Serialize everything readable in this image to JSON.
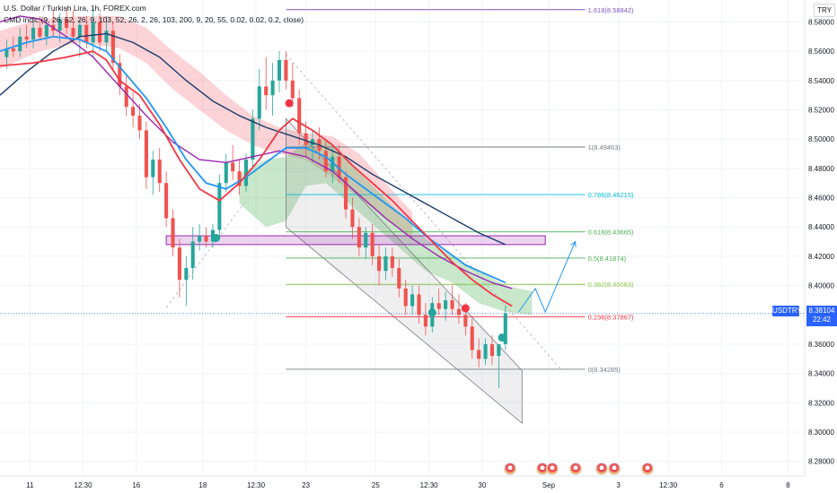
{
  "legend": {
    "symbol": "U.S. Dollar / Turkish Lira, 1h, FOREX.com",
    "indicator": "CMD indic (9, 26, 52, 26, 9, 103, 52, 26, 2, 26, 103, 200, 9, 20, 55, 0.02, 0.02, 0.2, close)"
  },
  "currency_button": "TRY",
  "current_price": {
    "symbol": "USDTRY",
    "value": "8.38104",
    "countdown": "22:42"
  },
  "chart_data": {
    "type": "candlestick",
    "title": "U.S. Dollar / Turkish Lira, 1h, FOREX.com",
    "ylim": [
      8.27,
      8.595
    ],
    "yticks": [
      8.28,
      8.3,
      8.32,
      8.34,
      8.36,
      8.38,
      8.4,
      8.42,
      8.44,
      8.46,
      8.48,
      8.5,
      8.52,
      8.54,
      8.56,
      8.58
    ],
    "ytick_labels": [
      "8.28000",
      "8.30000",
      "8.32000",
      "8.34000",
      "8.36000",
      "8.38000",
      "8.40000",
      "8.42000",
      "8.44000",
      "8.46000",
      "8.48000",
      "8.50000",
      "8.52000",
      "8.54000",
      "8.56000",
      "8.58000"
    ],
    "xlim": [
      0,
      121
    ],
    "xticks": [
      {
        "t": 4.5,
        "label": "11"
      },
      {
        "t": 12.5,
        "label": "12:30"
      },
      {
        "t": 20.5,
        "label": "16"
      },
      {
        "t": 30.5,
        "label": "18"
      },
      {
        "t": 38.5,
        "label": "12:30"
      },
      {
        "t": 46,
        "label": "23"
      },
      {
        "t": 56.5,
        "label": "25"
      },
      {
        "t": 64.5,
        "label": "12:30"
      },
      {
        "t": 72.5,
        "label": "30"
      },
      {
        "t": 82.5,
        "label": "Sep"
      },
      {
        "t": 93,
        "label": "3"
      },
      {
        "t": 100.5,
        "label": "12:30"
      },
      {
        "t": 108.5,
        "label": "6"
      },
      {
        "t": 118.5,
        "label": "8"
      }
    ],
    "current_price": 8.38104,
    "fibonacci": {
      "x_range": [
        43,
        88
      ],
      "levels": [
        {
          "ratio": "1.618",
          "value": 8.58842,
          "label": "1.618(8.58842)",
          "color": "#7e57c2"
        },
        {
          "ratio": "1",
          "value": 8.49463,
          "label": "1(8.49463)",
          "color": "#787b86"
        },
        {
          "ratio": "0.786",
          "value": 8.46215,
          "label": "0.786(8.46215)",
          "color": "#00bcd4"
        },
        {
          "ratio": "0.618",
          "value": 8.43665,
          "label": "0.618(8.43665)",
          "color": "#4caf50"
        },
        {
          "ratio": "0.5",
          "value": 8.41874,
          "label": "0.5(8.41874)",
          "color": "#4caf50"
        },
        {
          "ratio": "0.382",
          "value": 8.40083,
          "label": "0.382(8.40083)",
          "color": "#8bc34a"
        },
        {
          "ratio": "0.236",
          "value": 8.37867,
          "label": "0.236(8.37867)",
          "color": "#f23645"
        },
        {
          "ratio": "0",
          "value": 8.34285,
          "label": "0(8.34285)",
          "color": "#787b86"
        }
      ]
    },
    "zone": {
      "t0": 25,
      "t1": 82,
      "top": 8.434,
      "bottom": 8.428,
      "color": "#9c27b0"
    },
    "channel": [
      [
        43,
        8.514
      ],
      [
        78.5,
        8.342
      ],
      [
        78.5,
        8.306
      ],
      [
        43,
        8.44
      ]
    ],
    "projection_arrow": [
      [
        78,
        8.382
      ],
      [
        80.5,
        8.398
      ],
      [
        82,
        8.382
      ],
      [
        86.5,
        8.43
      ]
    ],
    "markers": [
      {
        "t": 32.5,
        "v": 8.4325,
        "color": "#26a69a"
      },
      {
        "t": 43.5,
        "v": 8.5245,
        "color": "#f23645"
      },
      {
        "t": 65,
        "v": 8.3815,
        "color": "#26a69a"
      },
      {
        "t": 70,
        "v": 8.3845,
        "color": "#f23645"
      },
      {
        "t": 75.5,
        "v": 8.3645,
        "color": "#26a69a"
      }
    ],
    "series": {
      "candles": [
        [
          1,
          8.556,
          8.568,
          8.548,
          8.562
        ],
        [
          2,
          8.562,
          8.57,
          8.556,
          8.56
        ],
        [
          3,
          8.56,
          8.576,
          8.556,
          8.57
        ],
        [
          4,
          8.57,
          8.578,
          8.562,
          8.568
        ],
        [
          5,
          8.568,
          8.58,
          8.562,
          8.576
        ],
        [
          6,
          8.576,
          8.584,
          8.568,
          8.57
        ],
        [
          7,
          8.57,
          8.582,
          8.564,
          8.578
        ],
        [
          8,
          8.578,
          8.588,
          8.57,
          8.574
        ],
        [
          9,
          8.574,
          8.586,
          8.566,
          8.582
        ],
        [
          10,
          8.582,
          8.59,
          8.572,
          8.576
        ],
        [
          11,
          8.576,
          8.588,
          8.566,
          8.57
        ],
        [
          12,
          8.57,
          8.582,
          8.556,
          8.578
        ],
        [
          13,
          8.578,
          8.584,
          8.562,
          8.566
        ],
        [
          14,
          8.566,
          8.59,
          8.556,
          8.58
        ],
        [
          15,
          8.58,
          8.586,
          8.56,
          8.566
        ],
        [
          16,
          8.566,
          8.584,
          8.56,
          8.574
        ],
        [
          17,
          8.574,
          8.58,
          8.548,
          8.552
        ],
        [
          18,
          8.552,
          8.558,
          8.53,
          8.536
        ],
        [
          19,
          8.536,
          8.544,
          8.516,
          8.522
        ],
        [
          20,
          8.522,
          8.532,
          8.508,
          8.516
        ],
        [
          21,
          8.516,
          8.524,
          8.5,
          8.506
        ],
        [
          22,
          8.506,
          8.512,
          8.466,
          8.474
        ],
        [
          23,
          8.474,
          8.492,
          8.462,
          8.486
        ],
        [
          24,
          8.486,
          8.494,
          8.464,
          8.47
        ],
        [
          25,
          8.47,
          8.478,
          8.44,
          8.446
        ],
        [
          26,
          8.446,
          8.452,
          8.42,
          8.426
        ],
        [
          27,
          8.426,
          8.432,
          8.392,
          8.404
        ],
        [
          28,
          8.404,
          8.42,
          8.386,
          8.412
        ],
        [
          29,
          8.412,
          8.44,
          8.404,
          8.43
        ],
        [
          30,
          8.43,
          8.442,
          8.424,
          8.434
        ],
        [
          31,
          8.434,
          8.44,
          8.426,
          8.43
        ],
        [
          32,
          8.43,
          8.442,
          8.426,
          8.438
        ],
        [
          33,
          8.438,
          8.476,
          8.434,
          8.47
        ],
        [
          34,
          8.47,
          8.49,
          8.464,
          8.484
        ],
        [
          35,
          8.484,
          8.496,
          8.472,
          8.478
        ],
        [
          36,
          8.478,
          8.486,
          8.462,
          8.468
        ],
        [
          37,
          8.468,
          8.49,
          8.464,
          8.486
        ],
        [
          38,
          8.486,
          8.52,
          8.48,
          8.514
        ],
        [
          39,
          8.514,
          8.548,
          8.506,
          8.536
        ],
        [
          40,
          8.536,
          8.556,
          8.52,
          8.53
        ],
        [
          41,
          8.53,
          8.552,
          8.516,
          8.54
        ],
        [
          42,
          8.54,
          8.56,
          8.532,
          8.554
        ],
        [
          43,
          8.554,
          8.56,
          8.534,
          8.54
        ],
        [
          44,
          8.54,
          8.552,
          8.522,
          8.528
        ],
        [
          45,
          8.528,
          8.534,
          8.496,
          8.504
        ],
        [
          46,
          8.504,
          8.512,
          8.488,
          8.496
        ],
        [
          47,
          8.496,
          8.506,
          8.484,
          8.5
        ],
        [
          48,
          8.5,
          8.508,
          8.486,
          8.492
        ],
        [
          49,
          8.492,
          8.5,
          8.474,
          8.478
        ],
        [
          50,
          8.478,
          8.494,
          8.47,
          8.488
        ],
        [
          51,
          8.488,
          8.496,
          8.47,
          8.474
        ],
        [
          52,
          8.474,
          8.478,
          8.446,
          8.452
        ],
        [
          53,
          8.452,
          8.46,
          8.432,
          8.44
        ],
        [
          54,
          8.44,
          8.446,
          8.42,
          8.426
        ],
        [
          55,
          8.426,
          8.44,
          8.418,
          8.436
        ],
        [
          56,
          8.436,
          8.442,
          8.414,
          8.42
        ],
        [
          57,
          8.42,
          8.428,
          8.4,
          8.41
        ],
        [
          58,
          8.41,
          8.426,
          8.404,
          8.42
        ],
        [
          59,
          8.42,
          8.426,
          8.406,
          8.412
        ],
        [
          60,
          8.412,
          8.418,
          8.392,
          8.398
        ],
        [
          61,
          8.398,
          8.404,
          8.38,
          8.386
        ],
        [
          62,
          8.386,
          8.4,
          8.38,
          8.394
        ],
        [
          63,
          8.394,
          8.4,
          8.374,
          8.38
        ],
        [
          64,
          8.38,
          8.388,
          8.366,
          8.372
        ],
        [
          65,
          8.372,
          8.392,
          8.368,
          8.388
        ],
        [
          66,
          8.388,
          8.398,
          8.38,
          8.384
        ],
        [
          67,
          8.384,
          8.396,
          8.376,
          8.39
        ],
        [
          68,
          8.39,
          8.4,
          8.38,
          8.384
        ],
        [
          69,
          8.384,
          8.394,
          8.374,
          8.38
        ],
        [
          70,
          8.38,
          8.388,
          8.366,
          8.372
        ],
        [
          71,
          8.372,
          8.378,
          8.35,
          8.356
        ],
        [
          72,
          8.356,
          8.364,
          8.344,
          8.35
        ],
        [
          73,
          8.35,
          8.364,
          8.346,
          8.36
        ],
        [
          74,
          8.36,
          8.366,
          8.346,
          8.352
        ],
        [
          75,
          8.352,
          8.358,
          8.33,
          8.36
        ],
        [
          76,
          8.36,
          8.386,
          8.356,
          8.381
        ]
      ],
      "red_line": [
        [
          0,
          8.55
        ],
        [
          5,
          8.552
        ],
        [
          10,
          8.556
        ],
        [
          14,
          8.56
        ],
        [
          16,
          8.554
        ],
        [
          18,
          8.54
        ],
        [
          21,
          8.53
        ],
        [
          24,
          8.51
        ],
        [
          27,
          8.486
        ],
        [
          30,
          8.466
        ],
        [
          33,
          8.458
        ],
        [
          36,
          8.47
        ],
        [
          39,
          8.486
        ],
        [
          42,
          8.506
        ],
        [
          44,
          8.514
        ],
        [
          47,
          8.506
        ],
        [
          50,
          8.496
        ],
        [
          53,
          8.482
        ],
        [
          56,
          8.47
        ],
        [
          59,
          8.458
        ],
        [
          62,
          8.444
        ],
        [
          65,
          8.43
        ],
        [
          68,
          8.416
        ],
        [
          71,
          8.404
        ],
        [
          74,
          8.394
        ],
        [
          77,
          8.386
        ]
      ],
      "blue_line": [
        [
          0,
          8.56
        ],
        [
          4,
          8.566
        ],
        [
          8,
          8.57
        ],
        [
          12,
          8.568
        ],
        [
          16,
          8.56
        ],
        [
          19,
          8.544
        ],
        [
          22,
          8.528
        ],
        [
          25,
          8.508
        ],
        [
          28,
          8.486
        ],
        [
          31,
          8.47
        ],
        [
          34,
          8.466
        ],
        [
          37,
          8.474
        ],
        [
          40,
          8.484
        ],
        [
          43,
          8.494
        ],
        [
          46,
          8.494
        ],
        [
          49,
          8.488
        ],
        [
          52,
          8.476
        ],
        [
          55,
          8.466
        ],
        [
          58,
          8.456
        ],
        [
          61,
          8.446
        ],
        [
          64,
          8.434
        ],
        [
          67,
          8.424
        ],
        [
          70,
          8.414
        ],
        [
          73,
          8.408
        ],
        [
          76,
          8.402
        ]
      ],
      "purple_line": [
        [
          0,
          8.58
        ],
        [
          3,
          8.584
        ],
        [
          6,
          8.582
        ],
        [
          10,
          8.57
        ],
        [
          14,
          8.556
        ],
        [
          18,
          8.536
        ],
        [
          22,
          8.516
        ],
        [
          26,
          8.498
        ],
        [
          30,
          8.486
        ],
        [
          34,
          8.484
        ],
        [
          38,
          8.488
        ],
        [
          42,
          8.492
        ],
        [
          46,
          8.488
        ],
        [
          50,
          8.478
        ],
        [
          54,
          8.462
        ],
        [
          58,
          8.446
        ],
        [
          62,
          8.432
        ],
        [
          66,
          8.42
        ],
        [
          70,
          8.41
        ],
        [
          74,
          8.402
        ],
        [
          77,
          8.398
        ]
      ],
      "navy_line": [
        [
          0,
          8.53
        ],
        [
          4,
          8.546
        ],
        [
          8,
          8.56
        ],
        [
          12,
          8.57
        ],
        [
          16,
          8.572
        ],
        [
          20,
          8.566
        ],
        [
          24,
          8.556
        ],
        [
          28,
          8.54
        ],
        [
          32,
          8.526
        ],
        [
          36,
          8.516
        ],
        [
          40,
          8.508
        ],
        [
          44,
          8.502
        ],
        [
          48,
          8.496
        ],
        [
          52,
          8.488
        ],
        [
          56,
          8.476
        ],
        [
          60,
          8.466
        ],
        [
          64,
          8.456
        ],
        [
          68,
          8.446
        ],
        [
          72,
          8.436
        ],
        [
          76,
          8.428
        ]
      ],
      "cloud_red": [
        [
          0,
          8.574,
          8.548
        ],
        [
          6,
          8.582,
          8.56
        ],
        [
          12,
          8.584,
          8.566
        ],
        [
          18,
          8.584,
          8.562
        ],
        [
          22,
          8.576,
          8.552
        ],
        [
          26,
          8.56,
          8.534
        ],
        [
          30,
          8.546,
          8.52
        ],
        [
          34,
          8.53,
          8.506
        ],
        [
          38,
          8.516,
          8.496
        ],
        [
          42,
          8.508,
          8.49
        ],
        [
          46,
          8.504,
          8.486
        ],
        [
          50,
          8.502,
          8.474
        ],
        [
          54,
          8.49,
          8.46
        ],
        [
          58,
          8.47,
          8.446
        ],
        [
          62,
          8.45,
          8.432
        ]
      ],
      "cloud_green": [
        [
          36,
          8.476,
          8.456
        ],
        [
          40,
          8.486,
          8.44
        ],
        [
          43,
          8.488,
          8.444
        ],
        [
          46,
          8.498,
          8.468
        ],
        [
          49,
          8.5,
          8.47
        ],
        [
          64,
          8.432,
          8.41
        ],
        [
          68,
          8.42,
          8.402
        ],
        [
          72,
          8.41,
          8.388
        ],
        [
          76,
          8.4,
          8.382
        ],
        [
          80,
          8.396,
          8.38
        ]
      ]
    }
  }
}
